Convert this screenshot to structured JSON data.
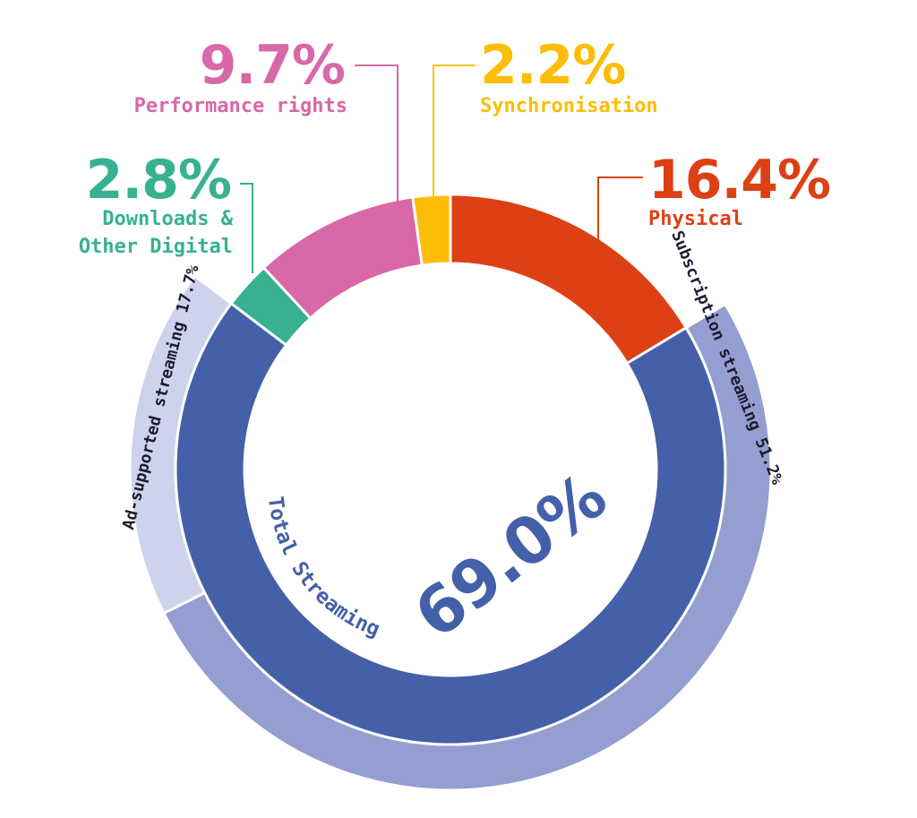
{
  "chart_data": {
    "type": "pie",
    "title": "",
    "inner_ring": [
      {
        "label": "Physical",
        "value": 16.4,
        "display": "16.4%",
        "color": "#DD4014"
      },
      {
        "label": "Total Streaming",
        "value": 69.0,
        "display": "69.0%",
        "color": "#4460A8"
      },
      {
        "label": "Downloads & Other Digital",
        "label_lines": [
          "Downloads &",
          "Other Digital"
        ],
        "value": 2.8,
        "display": "2.8%",
        "color": "#37B190"
      },
      {
        "label": "Performance rights",
        "value": 9.7,
        "display": "9.7%",
        "color": "#D868A7"
      },
      {
        "label": "Synchronisation",
        "value": 2.2,
        "display": "2.2%",
        "color": "#FBBD08"
      }
    ],
    "outer_ring": [
      {
        "label": "Subscription streaming 51.2%",
        "value": 51.2,
        "color": "#949ED0"
      },
      {
        "label": "Ad-supported streaming 17.7%",
        "value": 17.7,
        "color": "#CFD2EC"
      }
    ],
    "streaming_label": "Total Streaming",
    "streaming_value": "69.0%"
  }
}
